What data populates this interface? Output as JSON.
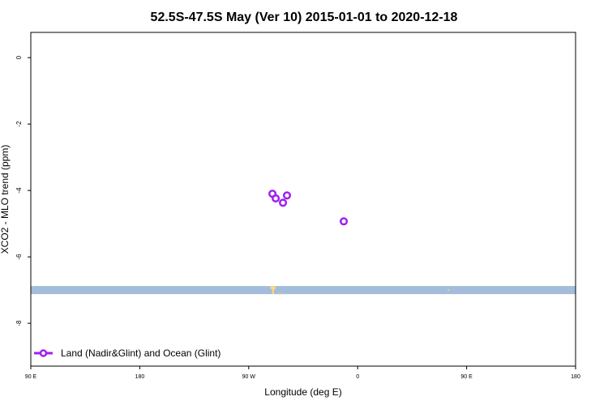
{
  "chart_data": {
    "type": "scatter",
    "title": "52.5S-47.5S May (Ver 10)   2015-01-01 to 2020-12-18",
    "xlabel": "Longitude (deg E)",
    "ylabel": "XCO2 - MLO trend (ppm)",
    "x_ticks": [
      "90 E",
      "180",
      "90 W",
      "0",
      "90 E",
      "180"
    ],
    "y_ticks": [
      0,
      -2,
      -4,
      -6,
      -8
    ],
    "ylim": [
      -9.29,
      0.76
    ],
    "grid": false,
    "legend_placement": "bottom-left",
    "series": [
      {
        "name": "Land (Nadir&Glint) and Ocean (Glint)",
        "color": "#a020f0",
        "marker": "open-circle",
        "points": [
          {
            "lon": -70.4,
            "y": -4.1
          },
          {
            "lon": -67.7,
            "y": -4.24
          },
          {
            "lon": -61.7,
            "y": -4.37
          },
          {
            "lon": -58.4,
            "y": -4.15
          },
          {
            "lon": -11.5,
            "y": -4.93
          }
        ]
      }
    ],
    "map_band": {
      "y_center": -7.0,
      "ocean_color": "#a4bcdc",
      "land_color": "#fcd878"
    }
  }
}
